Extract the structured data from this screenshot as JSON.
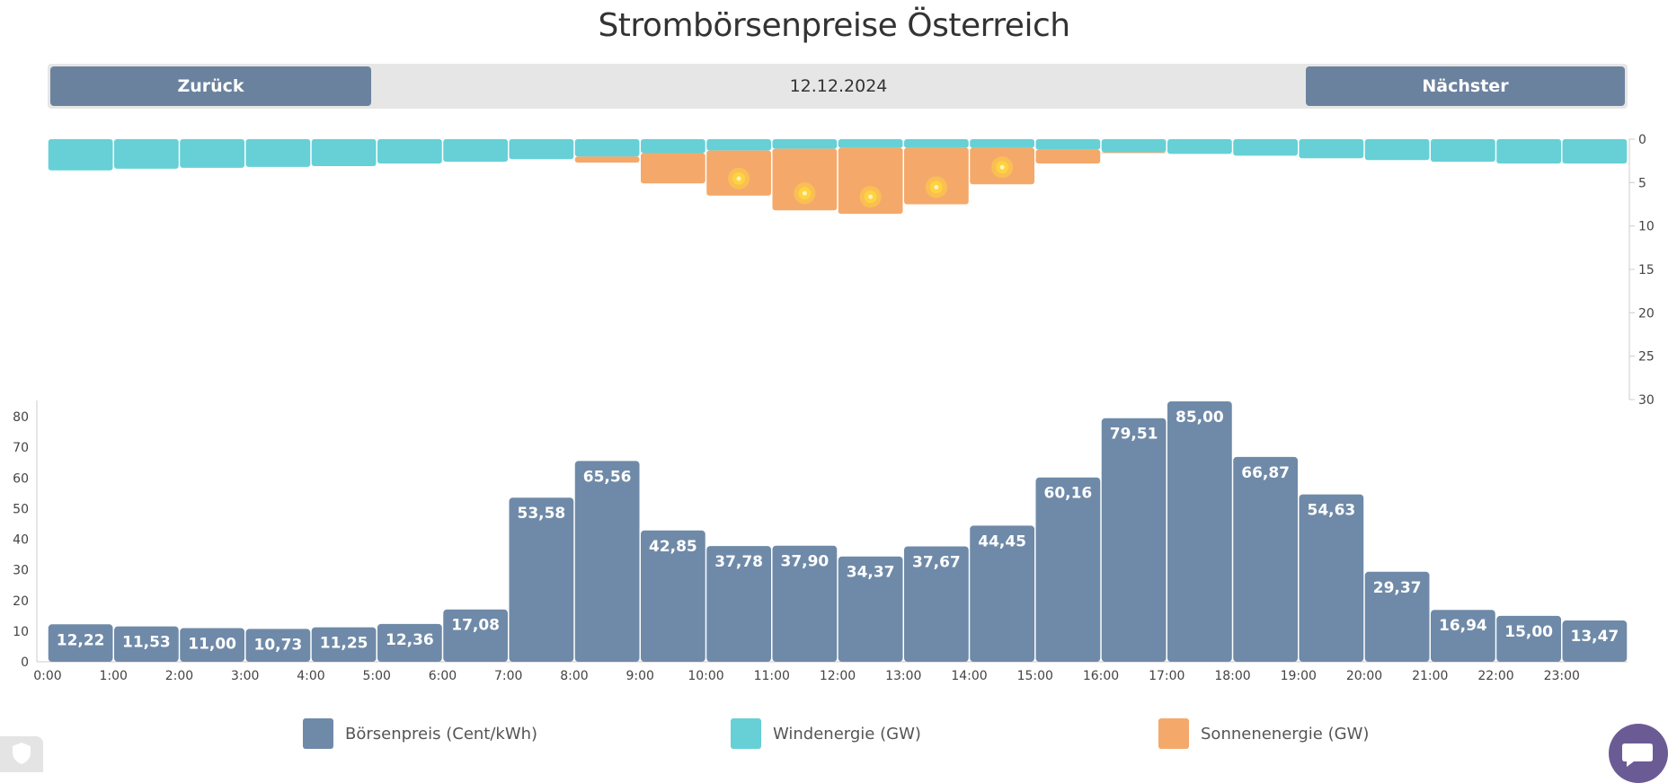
{
  "page": {
    "title": "Strombörsenpreise Österreich",
    "nav": {
      "prev_label": "Zurück",
      "next_label": "Nächster",
      "date": "12.12.2024"
    }
  },
  "colors": {
    "price": "#6f8aa8",
    "wind": "#66d0d6",
    "solar": "#f4a96b",
    "sun_icon": "#ffd23f"
  },
  "legend": [
    {
      "label": "Börsenpreis (Cent/kWh)",
      "color": "#6f8aa8"
    },
    {
      "label": "Windenergie (GW)",
      "color": "#66d0d6"
    },
    {
      "label": "Sonnenenergie (GW)",
      "color": "#f4a96b"
    }
  ],
  "icons": {
    "chat": "chat-icon",
    "cookie": "shield-icon",
    "sun": "sun-icon"
  },
  "chart_data": [
    {
      "type": "bar",
      "categories": [
        "0:00",
        "1:00",
        "2:00",
        "3:00",
        "4:00",
        "5:00",
        "6:00",
        "7:00",
        "8:00",
        "9:00",
        "10:00",
        "11:00",
        "12:00",
        "13:00",
        "14:00",
        "15:00",
        "16:00",
        "17:00",
        "18:00",
        "19:00",
        "20:00",
        "21:00",
        "22:00",
        "23:00"
      ],
      "series": [
        {
          "name": "Börsenpreis (Cent/kWh)",
          "values": [
            12.22,
            11.53,
            11.0,
            10.73,
            11.25,
            12.36,
            17.08,
            53.58,
            65.56,
            42.85,
            37.78,
            37.9,
            34.37,
            37.67,
            44.45,
            60.16,
            79.51,
            85.0,
            66.87,
            54.63,
            29.37,
            16.94,
            15.0,
            13.47
          ],
          "labels": [
            "12,22",
            "11,53",
            "11,00",
            "10,73",
            "11,25",
            "12,36",
            "17,08",
            "53,58",
            "65,56",
            "42,85",
            "37,78",
            "37,90",
            "34,37",
            "37,67",
            "44,45",
            "60,16",
            "79,51",
            "85,00",
            "66,87",
            "54,63",
            "29,37",
            "16,94",
            "15,00",
            "13,47"
          ]
        }
      ],
      "yticks": [
        "0",
        "10",
        "20",
        "30",
        "40",
        "50",
        "60",
        "70",
        "80"
      ],
      "ylim": [
        0,
        85
      ]
    },
    {
      "type": "bar",
      "orientation": "downward",
      "categories": [
        "0:00",
        "1:00",
        "2:00",
        "3:00",
        "4:00",
        "5:00",
        "6:00",
        "7:00",
        "8:00",
        "9:00",
        "10:00",
        "11:00",
        "12:00",
        "13:00",
        "14:00",
        "15:00",
        "16:00",
        "17:00",
        "18:00",
        "19:00",
        "20:00",
        "21:00",
        "22:00",
        "23:00"
      ],
      "series": [
        {
          "name": "Windenergie (GW)",
          "values": [
            3.6,
            3.4,
            3.3,
            3.2,
            3.1,
            2.8,
            2.6,
            2.3,
            2.0,
            1.6,
            1.3,
            1.1,
            1.0,
            1.0,
            1.0,
            1.2,
            1.5,
            1.7,
            1.9,
            2.2,
            2.4,
            2.6,
            2.8,
            2.8
          ]
        },
        {
          "name": "Sonnenenergie (GW)",
          "values": [
            0,
            0,
            0,
            0,
            0,
            0,
            0,
            0,
            0.7,
            3.5,
            5.2,
            7.1,
            7.6,
            6.5,
            4.2,
            1.6,
            0.1,
            0,
            0,
            0,
            0,
            0,
            0,
            0
          ],
          "sun_icon_hours": [
            10,
            11,
            12,
            13,
            14
          ]
        }
      ],
      "yticks": [
        "0",
        "5",
        "10",
        "15",
        "20",
        "25",
        "30"
      ],
      "ylim": [
        0,
        30
      ]
    }
  ]
}
